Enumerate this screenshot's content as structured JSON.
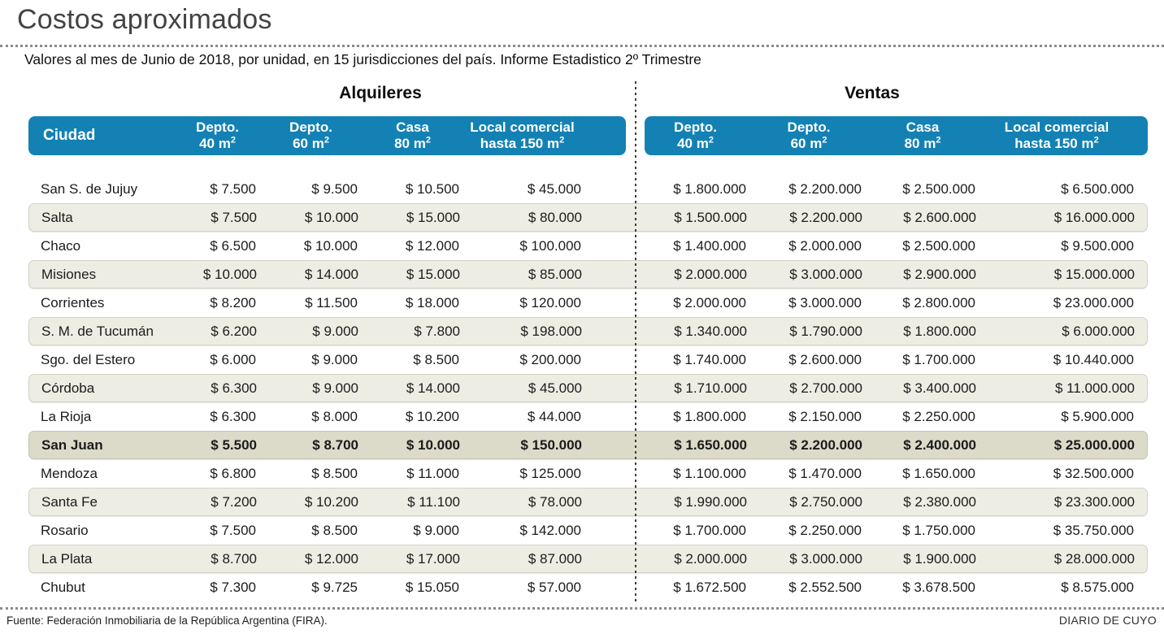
{
  "page": {
    "title": "Costos aproximados",
    "subtitle": "Valores al mes de Junio de 2018, por unidad, en 15 jurisdicciones del país. Informe Estadistico 2º Trimestre",
    "footer_source": "Fuente: Federación Inmobiliaria de la República Argentina (FIRA).",
    "footer_brand": "DIARIO DE CUYO"
  },
  "sections": {
    "left": "Alquileres",
    "right": "Ventas"
  },
  "columns": {
    "city": "Ciudad",
    "unit_headers": [
      {
        "line1": "Depto.",
        "line2": "40 m",
        "sup": "2"
      },
      {
        "line1": "Depto.",
        "line2": "60 m",
        "sup": "2"
      },
      {
        "line1": "Casa",
        "line2": "80 m",
        "sup": "2"
      },
      {
        "line1": "Local comercial",
        "line2": "hasta 150 m",
        "sup": "2"
      }
    ]
  },
  "colors": {
    "header_bg": "#1381b4",
    "stripe": "#edede4",
    "highlight": "#dcdbca"
  },
  "chart_data": {
    "type": "table",
    "title": "Costos aproximados",
    "groups": [
      "Alquileres",
      "Ventas"
    ],
    "group_columns": [
      "Depto. 40 m2",
      "Depto. 60 m2",
      "Casa 80 m2",
      "Local comercial hasta 150 m2"
    ],
    "highlighted_row": "San Juan",
    "rows": [
      {
        "city": "San S. de Jujuy",
        "alquileres": [
          "$ 7.500",
          "$ 9.500",
          "$ 10.500",
          "$ 45.000"
        ],
        "ventas": [
          "$ 1.800.000",
          "$ 2.200.000",
          "$ 2.500.000",
          "$ 6.500.000"
        ],
        "highlight": false
      },
      {
        "city": "Salta",
        "alquileres": [
          "$ 7.500",
          "$ 10.000",
          "$ 15.000",
          "$ 80.000"
        ],
        "ventas": [
          "$ 1.500.000",
          "$ 2.200.000",
          "$ 2.600.000",
          "$ 16.000.000"
        ],
        "highlight": false
      },
      {
        "city": "Chaco",
        "alquileres": [
          "$ 6.500",
          "$ 10.000",
          "$ 12.000",
          "$ 100.000"
        ],
        "ventas": [
          "$ 1.400.000",
          "$ 2.000.000",
          "$ 2.500.000",
          "$ 9.500.000"
        ],
        "highlight": false
      },
      {
        "city": "Misiones",
        "alquileres": [
          "$ 10.000",
          "$ 14.000",
          "$ 15.000",
          "$ 85.000"
        ],
        "ventas": [
          "$ 2.000.000",
          "$ 3.000.000",
          "$ 2.900.000",
          "$ 15.000.000"
        ],
        "highlight": false
      },
      {
        "city": "Corrientes",
        "alquileres": [
          "$ 8.200",
          "$ 11.500",
          "$ 18.000",
          "$ 120.000"
        ],
        "ventas": [
          "$ 2.000.000",
          "$ 3.000.000",
          "$ 2.800.000",
          "$ 23.000.000"
        ],
        "highlight": false
      },
      {
        "city": "S. M. de Tucumán",
        "alquileres": [
          "$ 6.200",
          "$ 9.000",
          "$ 7.800",
          "$ 198.000"
        ],
        "ventas": [
          "$ 1.340.000",
          "$ 1.790.000",
          "$ 1.800.000",
          "$ 6.000.000"
        ],
        "highlight": false
      },
      {
        "city": "Sgo. del Estero",
        "alquileres": [
          "$ 6.000",
          "$ 9.000",
          "$ 8.500",
          "$ 200.000"
        ],
        "ventas": [
          "$ 1.740.000",
          "$ 2.600.000",
          "$ 1.700.000",
          "$ 10.440.000"
        ],
        "highlight": false
      },
      {
        "city": "Córdoba",
        "alquileres": [
          "$ 6.300",
          "$ 9.000",
          "$ 14.000",
          "$ 45.000"
        ],
        "ventas": [
          "$ 1.710.000",
          "$ 2.700.000",
          "$ 3.400.000",
          "$ 11.000.000"
        ],
        "highlight": false
      },
      {
        "city": "La Rioja",
        "alquileres": [
          "$ 6.300",
          "$ 8.000",
          "$ 10.200",
          "$ 44.000"
        ],
        "ventas": [
          "$ 1.800.000",
          "$ 2.150.000",
          "$ 2.250.000",
          "$ 5.900.000"
        ],
        "highlight": false
      },
      {
        "city": "San Juan",
        "alquileres": [
          "$ 5.500",
          "$ 8.700",
          "$ 10.000",
          "$ 150.000"
        ],
        "ventas": [
          "$ 1.650.000",
          "$ 2.200.000",
          "$ 2.400.000",
          "$ 25.000.000"
        ],
        "highlight": true
      },
      {
        "city": "Mendoza",
        "alquileres": [
          "$ 6.800",
          "$ 8.500",
          "$ 11.000",
          "$ 125.000"
        ],
        "ventas": [
          "$ 1.100.000",
          "$ 1.470.000",
          "$ 1.650.000",
          "$ 32.500.000"
        ],
        "highlight": false
      },
      {
        "city": "Santa Fe",
        "alquileres": [
          "$ 7.200",
          "$ 10.200",
          "$ 11.100",
          "$ 78.000"
        ],
        "ventas": [
          "$ 1.990.000",
          "$ 2.750.000",
          "$ 2.380.000",
          "$ 23.300.000"
        ],
        "highlight": false
      },
      {
        "city": "Rosario",
        "alquileres": [
          "$ 7.500",
          "$ 8.500",
          "$ 9.000",
          "$ 142.000"
        ],
        "ventas": [
          "$ 1.700.000",
          "$ 2.250.000",
          "$ 1.750.000",
          "$ 35.750.000"
        ],
        "highlight": false
      },
      {
        "city": "La Plata",
        "alquileres": [
          "$ 8.700",
          "$ 12.000",
          "$ 17.000",
          "$ 87.000"
        ],
        "ventas": [
          "$ 2.000.000",
          "$ 3.000.000",
          "$ 1.900.000",
          "$ 28.000.000"
        ],
        "highlight": false
      },
      {
        "city": "Chubut",
        "alquileres": [
          "$ 7.300",
          "$ 9.725",
          "$ 15.050",
          "$ 57.000"
        ],
        "ventas": [
          "$ 1.672.500",
          "$ 2.552.500",
          "$ 3.678.500",
          "$ 8.575.000"
        ],
        "highlight": false
      }
    ]
  }
}
